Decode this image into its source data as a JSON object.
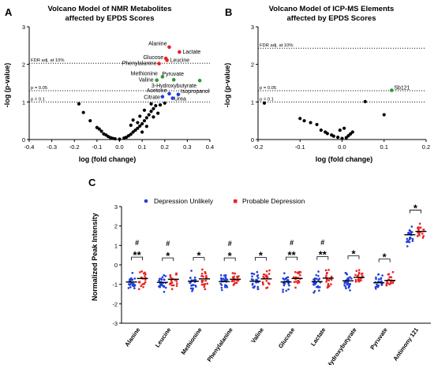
{
  "chart_data": [
    {
      "panel": "A",
      "type": "scatter",
      "title_line1": "Volcano Model of NMR Metabolites",
      "title_line2": "affected by EPDS Scores",
      "xlabel": "log (fold change)",
      "ylabel": "-log (p-value)",
      "xlim": [
        -0.4,
        0.4
      ],
      "ylim": [
        0,
        3
      ],
      "xticks": [
        "-0.4",
        "-0.3",
        "-0.2",
        "-0.1",
        "0.0",
        "0.1",
        "0.2",
        "0.3",
        "0.4"
      ],
      "yticks": [
        "0",
        "1",
        "2",
        "3"
      ],
      "thresholds": [
        {
          "y": 2.03,
          "label": "FDR adj. at 10%"
        },
        {
          "y": 1.3,
          "label": "p = 0.05"
        },
        {
          "y": 1.0,
          "label": "p = 0.1"
        }
      ],
      "colors": {
        "red": "#e8231f",
        "green": "#2e9c2e",
        "blue": "#1f3fd8",
        "black": "#000000"
      },
      "labeled_points": [
        {
          "name": "Alanine",
          "x": 0.22,
          "y": 2.46,
          "color": "red"
        },
        {
          "name": "Lactate",
          "x": 0.265,
          "y": 2.33,
          "color": "red"
        },
        {
          "name": "Glucose",
          "x": 0.205,
          "y": 2.16,
          "color": "red"
        },
        {
          "name": "Leucine",
          "x": 0.21,
          "y": 2.11,
          "color": "red"
        },
        {
          "name": "Phenylalanine",
          "x": 0.175,
          "y": 2.02,
          "color": "red"
        },
        {
          "name": "Methionine",
          "x": 0.19,
          "y": 1.67,
          "color": "green"
        },
        {
          "name": "Pyruvate",
          "x": 0.24,
          "y": 1.59,
          "color": "green"
        },
        {
          "name": "Valine",
          "x": 0.165,
          "y": 1.58,
          "color": "green"
        },
        {
          "name": "3-Hydroxybutyrate",
          "x": 0.355,
          "y": 1.57,
          "color": "green"
        },
        {
          "name": "Acetone",
          "x": 0.22,
          "y": 1.22,
          "color": "blue"
        },
        {
          "name": "Isopropanol",
          "x": 0.26,
          "y": 1.2,
          "color": "blue"
        },
        {
          "name": "Citrate",
          "x": 0.19,
          "y": 1.14,
          "color": "blue"
        },
        {
          "name": "Urea",
          "x": 0.235,
          "y": 1.1,
          "color": "blue"
        }
      ],
      "other_points": [
        [
          -0.18,
          0.95
        ],
        [
          -0.16,
          0.72
        ],
        [
          -0.13,
          0.5
        ],
        [
          -0.1,
          0.32
        ],
        [
          -0.09,
          0.28
        ],
        [
          -0.08,
          0.22
        ],
        [
          -0.07,
          0.15
        ],
        [
          -0.06,
          0.12
        ],
        [
          -0.05,
          0.08
        ],
        [
          -0.04,
          0.05
        ],
        [
          -0.03,
          0.03
        ],
        [
          -0.02,
          0.02
        ],
        [
          0.0,
          0.01
        ],
        [
          0.02,
          0.04
        ],
        [
          0.03,
          0.06
        ],
        [
          0.04,
          0.1
        ],
        [
          0.05,
          0.14
        ],
        [
          0.06,
          0.2
        ],
        [
          0.07,
          0.25
        ],
        [
          0.08,
          0.3
        ],
        [
          0.09,
          0.36
        ],
        [
          0.1,
          0.42
        ],
        [
          0.11,
          0.5
        ],
        [
          0.12,
          0.58
        ],
        [
          0.13,
          0.66
        ],
        [
          0.14,
          0.75
        ],
        [
          0.15,
          0.82
        ],
        [
          0.16,
          0.9
        ],
        [
          0.18,
          0.92
        ],
        [
          0.2,
          0.97
        ],
        [
          0.12,
          0.35
        ],
        [
          0.1,
          0.2
        ],
        [
          0.15,
          0.6
        ],
        [
          0.08,
          0.45
        ],
        [
          0.14,
          0.95
        ],
        [
          0.17,
          0.7
        ],
        [
          0.06,
          0.52
        ],
        [
          0.11,
          0.78
        ],
        [
          0.05,
          0.38
        ],
        [
          0.09,
          0.62
        ]
      ]
    },
    {
      "panel": "B",
      "type": "scatter",
      "title_line1": "Volcano Model of ICP-MS Elements",
      "title_line2": "affected by EPDS Scores",
      "xlabel": "log (fold change)",
      "ylabel": "-log (p-value)",
      "xlim": [
        -0.2,
        0.2
      ],
      "ylim": [
        0,
        3
      ],
      "xticks": [
        "-0.2",
        "-0.1",
        "0.0",
        "0.1",
        "0.2"
      ],
      "yticks": [
        "0",
        "1",
        "2",
        "3"
      ],
      "thresholds": [
        {
          "y": 2.43,
          "label": "FDR adj. at 10%"
        },
        {
          "y": 1.3,
          "label": "p = 0.05"
        },
        {
          "y": 1.0,
          "label": "p = 0.1"
        }
      ],
      "labeled_points": [
        {
          "name": "Sb121",
          "x": 0.118,
          "y": 1.31,
          "color": "green"
        }
      ],
      "other_points": [
        [
          -0.185,
          0.97
        ],
        [
          -0.1,
          0.56
        ],
        [
          -0.09,
          0.5
        ],
        [
          -0.075,
          0.45
        ],
        [
          -0.06,
          0.4
        ],
        [
          -0.05,
          0.25
        ],
        [
          -0.04,
          0.2
        ],
        [
          -0.035,
          0.16
        ],
        [
          -0.025,
          0.12
        ],
        [
          -0.02,
          0.09
        ],
        [
          -0.01,
          0.06
        ],
        [
          0.0,
          0.03
        ],
        [
          0.01,
          0.05
        ],
        [
          0.015,
          0.1
        ],
        [
          0.02,
          0.15
        ],
        [
          0.025,
          0.2
        ],
        [
          -0.005,
          0.25
        ],
        [
          0.005,
          0.3
        ],
        [
          0.055,
          1.01
        ],
        [
          0.1,
          0.66
        ]
      ]
    },
    {
      "panel": "C",
      "type": "scatter",
      "ylabel": "Normalized Peak Intensity",
      "ylim": [
        -3,
        3
      ],
      "yticks": [
        "-3",
        "-2",
        "-1",
        "0",
        "1",
        "2",
        "3"
      ],
      "legend": [
        "Depression Unlikely",
        "Probable Depression"
      ],
      "legend_colors": [
        "#1f3fd8",
        "#e8231f"
      ],
      "categories": [
        "Alanine",
        "Leucine",
        "Methionine",
        "Phenylalanine",
        "Valine",
        "Glucose",
        "Lactate",
        "3-Hydroxybutyrate",
        "Pyruvate",
        "Antimony 121"
      ],
      "means_unlikely": [
        -0.88,
        -0.9,
        -0.84,
        -0.86,
        -0.84,
        -0.88,
        -0.86,
        -0.82,
        -0.92,
        1.55
      ],
      "means_probable": [
        -0.7,
        -0.74,
        -0.72,
        -0.74,
        -0.72,
        -0.7,
        -0.68,
        -0.64,
        -0.8,
        1.72
      ],
      "significance": [
        "# **",
        "# *",
        "*",
        "# *",
        "*",
        "# **",
        "# **",
        "*",
        "*",
        "*"
      ]
    }
  ],
  "panel_labels": {
    "A": "A",
    "B": "B",
    "C": "C"
  }
}
